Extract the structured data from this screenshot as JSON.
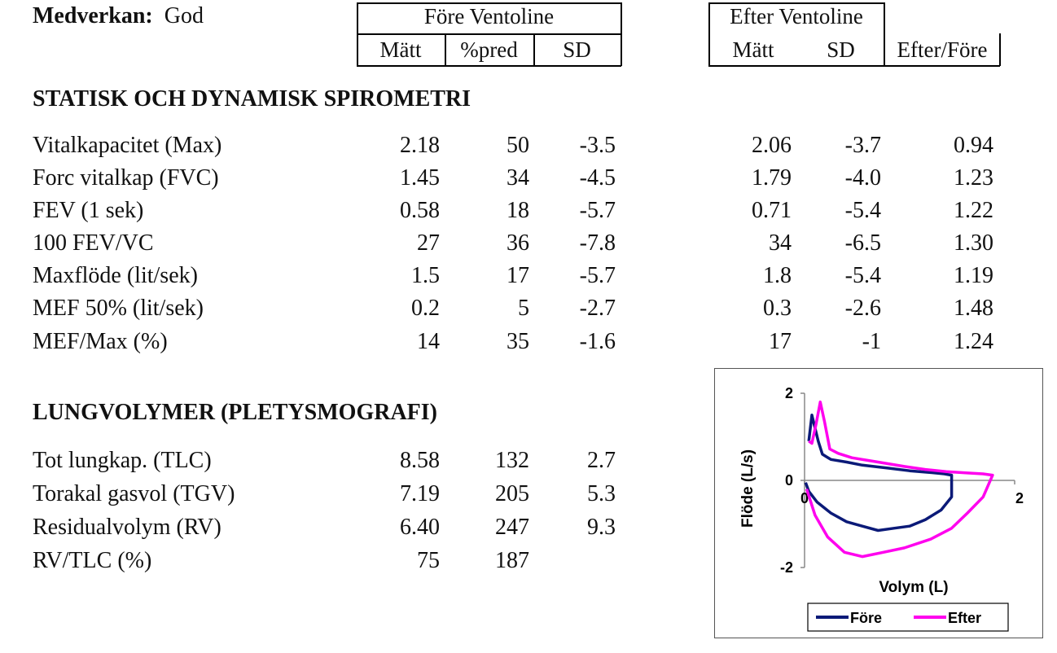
{
  "header": {
    "medverkan_label": "Medverkan:",
    "medverkan_value": "God",
    "fore_title": "Före Ventoline",
    "efter_title": "Efter Ventoline",
    "fore_cols": [
      "Mätt",
      "%pred",
      "SD"
    ],
    "efter_cols": [
      "Mätt",
      "SD",
      "Efter/Före"
    ]
  },
  "spirometri": {
    "title": "STATISK OCH DYNAMISK SPIROMETRI",
    "rows": [
      {
        "label": "Vitalkapacitet  (Max)",
        "fore_matt": "2.18",
        "fore_pred": "50",
        "fore_sd": "-3.5",
        "efter_matt": "2.06",
        "efter_sd": "-3.7",
        "ratio": "0.94"
      },
      {
        "label": "Forc vitalkap  (FVC)",
        "fore_matt": "1.45",
        "fore_pred": "34",
        "fore_sd": "-4.5",
        "efter_matt": "1.79",
        "efter_sd": "-4.0",
        "ratio": "1.23"
      },
      {
        "label": "FEV (1 sek)",
        "fore_matt": "0.58",
        "fore_pred": "18",
        "fore_sd": "-5.7",
        "efter_matt": "0.71",
        "efter_sd": "-5.4",
        "ratio": "1.22"
      },
      {
        "label": "100 FEV/VC",
        "fore_matt": "27",
        "fore_pred": "36",
        "fore_sd": "-7.8",
        "efter_matt": "34",
        "efter_sd": "-6.5",
        "ratio": "1.30"
      },
      {
        "label": "Maxflöde  (lit/sek)",
        "fore_matt": "1.5",
        "fore_pred": "17",
        "fore_sd": "-5.7",
        "efter_matt": "1.8",
        "efter_sd": "-5.4",
        "ratio": "1.19"
      },
      {
        "label": "MEF 50%  (lit/sek)",
        "fore_matt": "0.2",
        "fore_pred": "5",
        "fore_sd": "-2.7",
        "efter_matt": "0.3",
        "efter_sd": "-2.6",
        "ratio": "1.48"
      },
      {
        "label": "MEF/Max (%)",
        "fore_matt": "14",
        "fore_pred": "35",
        "fore_sd": "-1.6",
        "efter_matt": "17",
        "efter_sd": "-1",
        "ratio": "1.24"
      }
    ]
  },
  "lungvolymer": {
    "title": "LUNGVOLYMER (PLETYSMOGRAFI)",
    "rows": [
      {
        "label": "Tot lungkap.  (TLC)",
        "fore_matt": "8.58",
        "fore_pred": "132",
        "fore_sd": "2.7"
      },
      {
        "label": "Torakal gasvol  (TGV)",
        "fore_matt": "7.19",
        "fore_pred": "205",
        "fore_sd": "5.3"
      },
      {
        "label": "Residualvolym  (RV)",
        "fore_matt": "6.40",
        "fore_pred": "247",
        "fore_sd": "9.3"
      },
      {
        "label": "RV/TLC  (%)",
        "fore_matt": "75",
        "fore_pred": "187",
        "fore_sd": ""
      }
    ]
  },
  "chart_data": {
    "type": "line",
    "title": "",
    "xlabel": "Volym (L)",
    "ylabel": "Flöde (L/s)",
    "xlim": [
      0,
      2
    ],
    "ylim": [
      -2,
      2
    ],
    "xticks": [
      "0",
      "2"
    ],
    "yticks": [
      "2",
      "0",
      "-2"
    ],
    "legend_position": "bottom",
    "series": [
      {
        "name": "Före",
        "color": "#0b1a78",
        "x": [
          0.04,
          0.07,
          0.1,
          0.13,
          0.17,
          0.25,
          0.4,
          0.55,
          0.8,
          1.0,
          1.2,
          1.33,
          1.4,
          1.4,
          1.3,
          1.15,
          1.0,
          0.85,
          0.7,
          0.55,
          0.4,
          0.25,
          0.12,
          0.04,
          0.01
        ],
        "y": [
          0.9,
          1.5,
          1.2,
          0.9,
          0.6,
          0.48,
          0.42,
          0.35,
          0.28,
          0.22,
          0.18,
          0.15,
          0.12,
          -0.38,
          -0.68,
          -0.9,
          -1.05,
          -1.1,
          -1.15,
          -1.05,
          -0.95,
          -0.75,
          -0.5,
          -0.25,
          -0.05
        ]
      },
      {
        "name": "Efter",
        "color": "#ff00ee",
        "x": [
          0.04,
          0.07,
          0.11,
          0.15,
          0.19,
          0.24,
          0.32,
          0.45,
          0.7,
          0.95,
          1.15,
          1.35,
          1.55,
          1.7,
          1.79,
          1.7,
          1.55,
          1.4,
          1.2,
          0.95,
          0.75,
          0.55,
          0.38,
          0.22,
          0.1,
          0.02
        ],
        "y": [
          0.9,
          0.85,
          1.3,
          1.8,
          1.35,
          0.72,
          0.62,
          0.52,
          0.42,
          0.32,
          0.25,
          0.2,
          0.17,
          0.15,
          0.12,
          -0.38,
          -0.75,
          -1.1,
          -1.35,
          -1.55,
          -1.65,
          -1.75,
          -1.65,
          -1.3,
          -0.8,
          -0.2
        ]
      }
    ]
  }
}
